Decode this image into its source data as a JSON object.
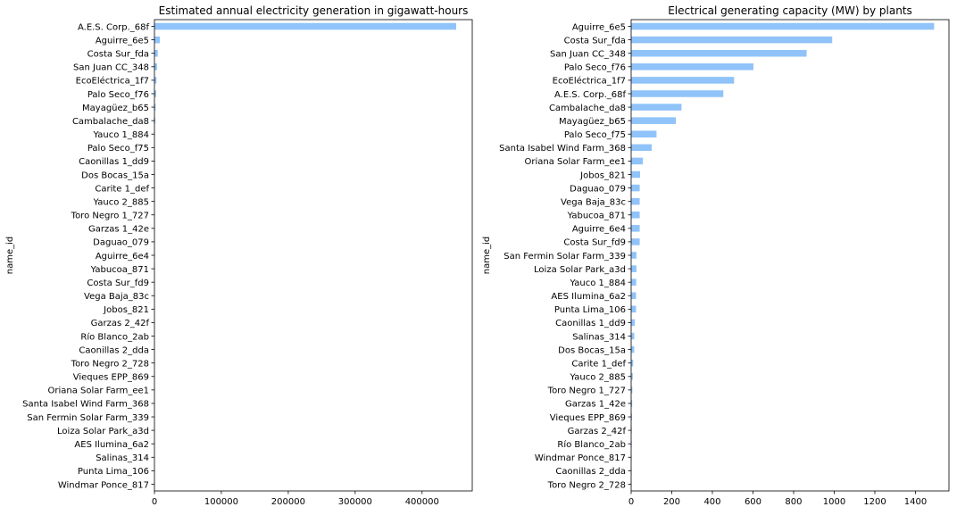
{
  "style": {
    "bar_color": "#90C3F9",
    "axis_color": "#000000",
    "background": "#ffffff"
  },
  "chart_data": [
    {
      "type": "bar",
      "orientation": "horizontal",
      "title": "Estimated annual electricity generation in gigawatt-hours",
      "xlabel": "",
      "ylabel": "name_id",
      "xlim": [
        0,
        475000
      ],
      "xticks": [
        0,
        100000,
        200000,
        300000,
        400000
      ],
      "xtick_labels": [
        "0",
        "100000",
        "200000",
        "300000",
        "400000"
      ],
      "grid": false,
      "legend": "none",
      "categories": [
        "A.E.S. Corp._68f",
        "Aguirre_6e5",
        "Costa Sur_fda",
        "San Juan CC_348",
        "EcoEléctrica_1f7",
        "Palo Seco_f76",
        "Mayagüez_b65",
        "Cambalache_da8",
        "Yauco 1_884",
        "Palo Seco_f75",
        "Caonillas 1_dd9",
        "Dos Bocas_15a",
        "Carite 1_def",
        "Yauco 2_885",
        "Toro Negro 1_727",
        "Garzas 1_42e",
        "Daguao_079",
        "Aguirre_6e4",
        "Yabucoa_871",
        "Costa Sur_fd9",
        "Vega Baja_83c",
        "Jobos_821",
        "Garzas 2_42f",
        "Río Blanco_2ab",
        "Caonillas 2_dda",
        "Toro Negro 2_728",
        "Vieques EPP_869",
        "Oriana Solar Farm_ee1",
        "Santa Isabel Wind Farm_368",
        "San Fermin Solar Farm_339",
        "Loiza Solar Park_a3d",
        "AES Ilumina_6a2",
        "Salinas_314",
        "Punta Lima_106",
        "Windmar Ponce_817"
      ],
      "values": [
        451000,
        8000,
        5000,
        3900,
        3000,
        2600,
        1600,
        1300,
        700,
        600,
        450,
        400,
        350,
        320,
        300,
        280,
        250,
        230,
        220,
        210,
        200,
        190,
        150,
        130,
        120,
        110,
        100,
        80,
        70,
        60,
        50,
        40,
        30,
        20,
        10
      ]
    },
    {
      "type": "bar",
      "orientation": "horizontal",
      "title": "Electrical generating capacity (MW) by plants",
      "xlabel": "",
      "ylabel": "name_id",
      "xlim": [
        0,
        1565
      ],
      "xticks": [
        0,
        200,
        400,
        600,
        800,
        1000,
        1200,
        1400
      ],
      "xtick_labels": [
        "0",
        "200",
        "400",
        "600",
        "800",
        "1000",
        "1200",
        "1400"
      ],
      "grid": false,
      "legend": "none",
      "categories": [
        "Aguirre_6e5",
        "Costa Sur_fda",
        "San Juan CC_348",
        "Palo Seco_f76",
        "EcoEléctrica_1f7",
        "A.E.S. Corp._68f",
        "Cambalache_da8",
        "Mayagüez_b65",
        "Palo Seco_f75",
        "Santa Isabel Wind Farm_368",
        "Oriana Solar Farm_ee1",
        "Jobos_821",
        "Daguao_079",
        "Vega Baja_83c",
        "Yabucoa_871",
        "Aguirre_6e4",
        "Costa Sur_fd9",
        "San Fermin Solar Farm_339",
        "Loiza Solar Park_a3d",
        "Yauco 1_884",
        "AES Ilumina_6a2",
        "Punta Lima_106",
        "Caonillas 1_dd9",
        "Salinas_314",
        "Dos Bocas_15a",
        "Carite 1_def",
        "Yauco 2_885",
        "Toro Negro 1_727",
        "Garzas 1_42e",
        "Vieques EPP_869",
        "Garzas 2_42f",
        "Río Blanco_2ab",
        "Windmar Ponce_817",
        "Caonillas 2_dda",
        "Toro Negro 2_728"
      ],
      "values": [
        1492,
        990,
        864,
        602,
        507,
        454,
        248,
        220,
        125,
        101,
        58,
        44,
        42,
        42,
        42,
        42,
        42,
        26,
        26,
        25,
        24,
        24,
        18,
        15,
        15,
        10,
        8,
        6,
        5,
        4,
        3,
        3,
        2,
        2,
        2
      ]
    }
  ]
}
